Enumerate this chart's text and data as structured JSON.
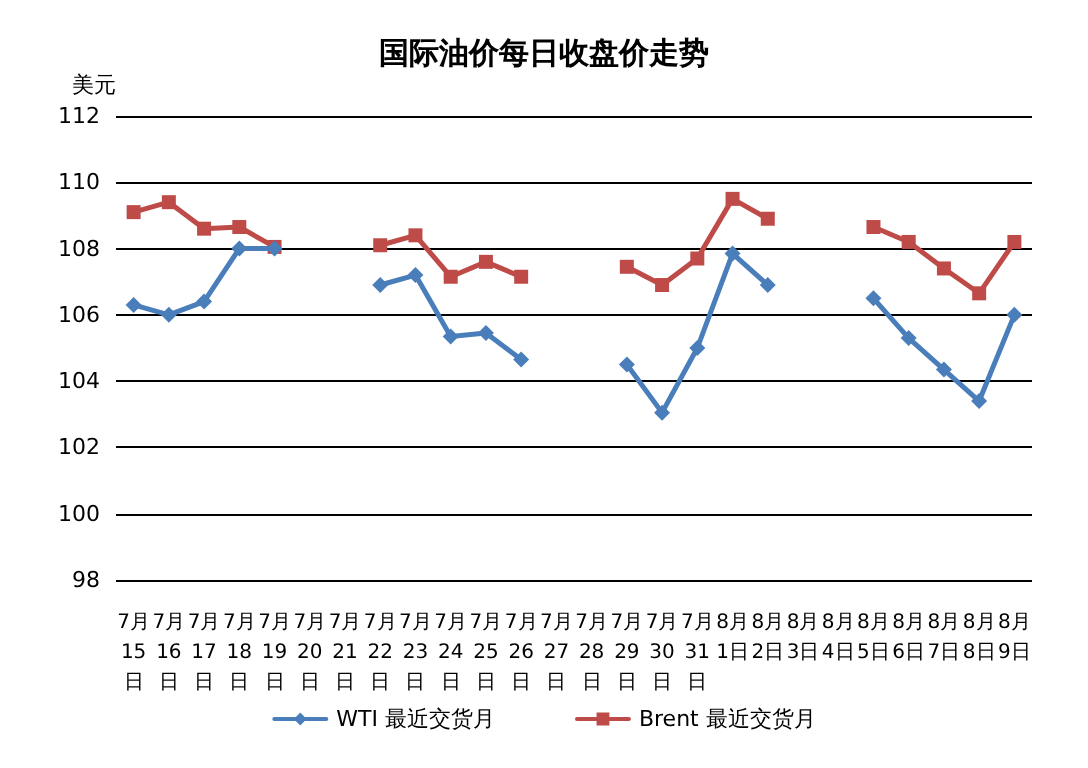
{
  "chart_data": {
    "type": "line",
    "title": "国际油价每日收盘价走势",
    "ylabel": "美元",
    "categories": [
      "7月15日",
      "7月16日",
      "7月17日",
      "7月18日",
      "7月19日",
      "7月20日",
      "7月21日",
      "7月22日",
      "7月23日",
      "7月24日",
      "7月25日",
      "7月26日",
      "7月27日",
      "7月28日",
      "7月29日",
      "7月30日",
      "7月31日",
      "8月1日",
      "8月2日",
      "8月3日",
      "8月4日",
      "8月5日",
      "8月6日",
      "8月7日",
      "8月8日",
      "8月9日"
    ],
    "series": [
      {
        "name": "WTI 最近交货月",
        "color": "#4a7ebb",
        "marker": "diamond",
        "values": [
          106.3,
          106.0,
          106.4,
          108.0,
          108.0,
          null,
          null,
          106.9,
          107.2,
          105.35,
          105.45,
          104.65,
          null,
          null,
          104.5,
          103.05,
          105.0,
          107.85,
          106.9,
          null,
          null,
          106.5,
          105.3,
          104.35,
          103.4,
          106.0
        ]
      },
      {
        "name": "Brent 最近交货月",
        "color": "#be4b48",
        "marker": "square",
        "values": [
          109.1,
          109.4,
          108.6,
          108.65,
          108.05,
          null,
          null,
          108.1,
          108.4,
          107.15,
          107.6,
          107.15,
          null,
          null,
          107.45,
          106.9,
          107.7,
          109.5,
          108.9,
          null,
          null,
          108.65,
          108.2,
          107.4,
          106.65,
          108.2
        ]
      }
    ],
    "ylim": [
      98,
      112
    ],
    "yticks": [
      98,
      100,
      102,
      104,
      106,
      108,
      110,
      112
    ],
    "grid": "y",
    "legend": "bottom",
    "line_style": "solid"
  }
}
